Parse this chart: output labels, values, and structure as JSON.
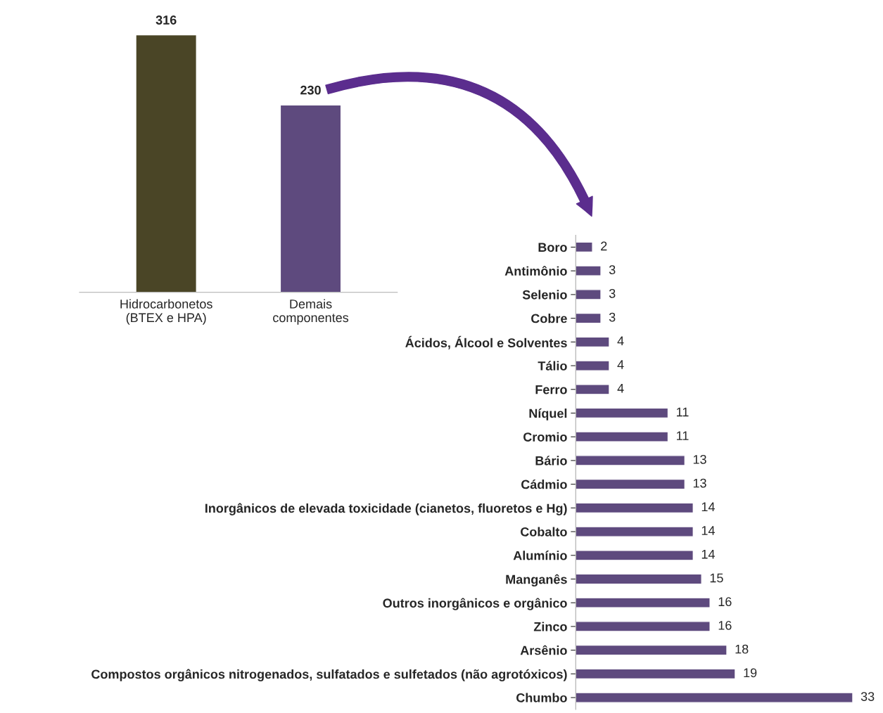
{
  "chart_data": [
    {
      "type": "bar",
      "categories": [
        "Hidrocarbonetos\n(BTEX e HPA)",
        "Demais\ncomponentes"
      ],
      "values": [
        316,
        230
      ],
      "colors": [
        "#4a4526",
        "#5e4a7e"
      ],
      "data_labels": true,
      "tick_labels": "x",
      "grid": false,
      "legend": false
    },
    {
      "type": "bar",
      "orientation": "horizontal",
      "categories": [
        "Boro",
        "Antimônio",
        "Selenio",
        "Cobre",
        "Ácidos, Álcool e Solventes",
        "Tálio",
        "Ferro",
        "Níquel",
        "Cromio",
        "Bário",
        "Cádmio",
        "Inorgânicos de elevada toxicidade (cianetos, fluoretos e Hg)",
        "Cobalto",
        "Alumínio",
        "Manganês",
        "Outros inorgânicos e orgânico",
        "Zinco",
        "Arsênio",
        "Compostos orgânicos nitrogenados, sulfatados e sulfetados (não agrotóxicos)",
        "Chumbo"
      ],
      "values": [
        2,
        3,
        3,
        3,
        4,
        4,
        4,
        11,
        11,
        13,
        13,
        14,
        14,
        14,
        15,
        16,
        16,
        18,
        19,
        33
      ],
      "color": "#5e4a7e",
      "data_labels": true,
      "tick_labels": "y",
      "grid": false,
      "legend": false
    }
  ]
}
